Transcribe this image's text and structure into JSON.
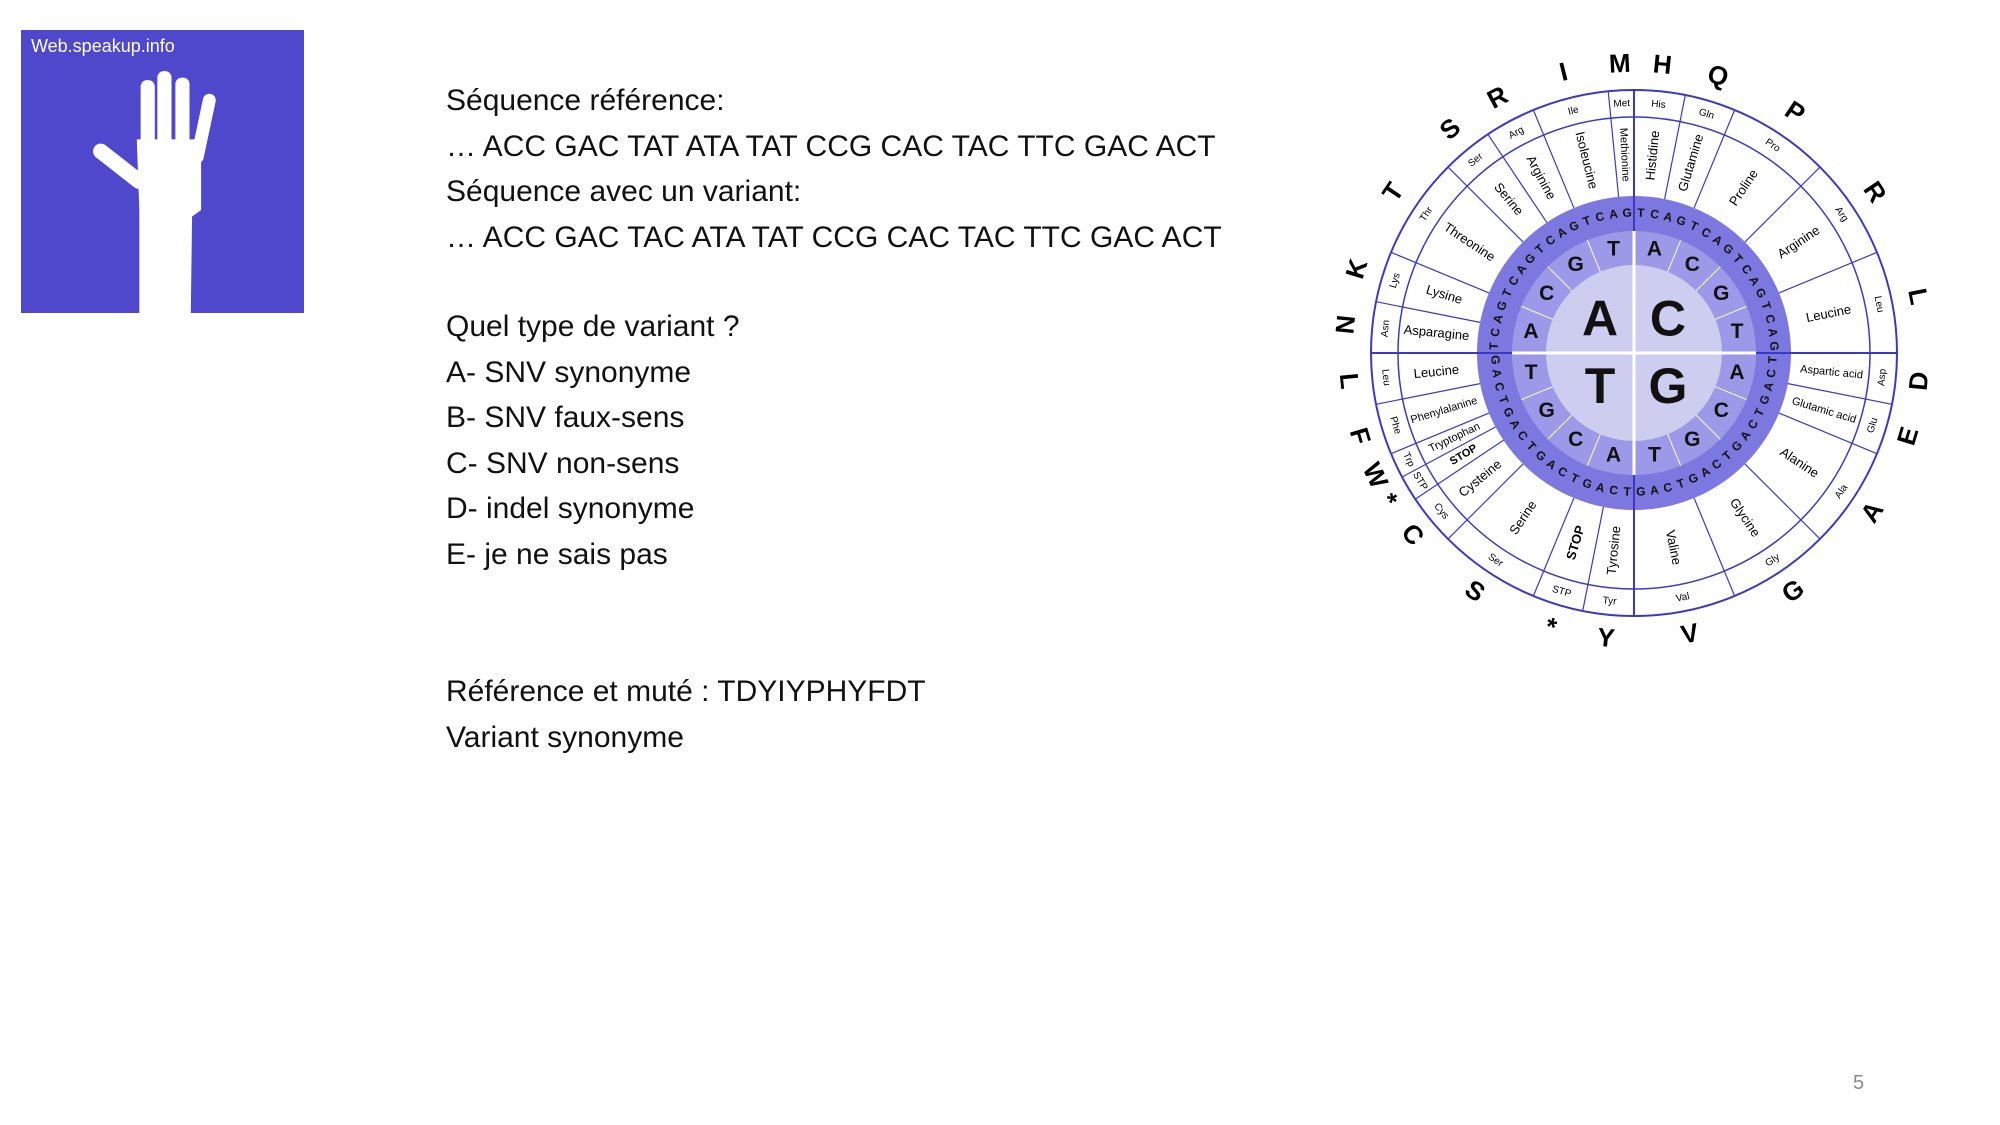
{
  "logo": {
    "text": "Web.speakup.info"
  },
  "slide": {
    "sequence_lines": [
      "Séquence référence:",
      "… ACC GAC TAT ATA TAT CCG CAC TAC TTC GAC ACT",
      "Séquence avec un variant:",
      "… ACC GAC TAC ATA TAT CCG CAC TAC TTC GAC ACT"
    ],
    "question_lines": [
      "Quel type de variant ?",
      "A- SNV synonyme",
      "B- SNV faux-sens",
      "C- SNV non-sens",
      "D- indel synonyme",
      "E- je ne sais pas"
    ],
    "answer_lines": [
      "Référence et muté : TDYIYPHYFDT",
      "Variant synonyme"
    ]
  },
  "wheel": {
    "first": [
      "A",
      "C",
      "G",
      "T"
    ],
    "second": [
      "A",
      "C",
      "G",
      "T"
    ],
    "third": [
      "T",
      "C",
      "A",
      "G"
    ],
    "amino_acids": [
      {
        "name": "Asparagine",
        "abbr": "Asn",
        "letter": "N"
      },
      {
        "name": "Lysine",
        "abbr": "Lys",
        "letter": "K"
      },
      {
        "name": "Threonine",
        "abbr": "Thr",
        "letter": "T"
      },
      {
        "name": "Serine",
        "abbr": "Ser",
        "letter": "S"
      },
      {
        "name": "Arginine",
        "abbr": "Arg",
        "letter": "R"
      },
      {
        "name": "Isoleucine",
        "abbr": "Ile",
        "letter": "I"
      },
      {
        "name": "Methionine",
        "abbr": "Met",
        "letter": "M"
      },
      {
        "name": "Histidine",
        "abbr": "His",
        "letter": "H"
      },
      {
        "name": "Glutamine",
        "abbr": "Gln",
        "letter": "Q"
      },
      {
        "name": "Proline",
        "abbr": "Pro",
        "letter": "P"
      },
      {
        "name": "Arginine",
        "abbr": "Arg",
        "letter": "R"
      },
      {
        "name": "Leucine",
        "abbr": "Leu",
        "letter": "L"
      },
      {
        "name": "Aspartic acid",
        "abbr": "Asp",
        "letter": "D"
      },
      {
        "name": "Glutamic acid",
        "abbr": "Glu",
        "letter": "E"
      },
      {
        "name": "Alanine",
        "abbr": "Ala",
        "letter": "A"
      },
      {
        "name": "Glycine",
        "abbr": "Gly",
        "letter": "G"
      },
      {
        "name": "Valine",
        "abbr": "Val",
        "letter": "V"
      },
      {
        "name": "Tyrosine",
        "abbr": "Tyr",
        "letter": "Y"
      },
      {
        "name": "STOP",
        "abbr": "STP",
        "letter": "*"
      },
      {
        "name": "Serine",
        "abbr": "Ser",
        "letter": "S"
      },
      {
        "name": "Cysteine",
        "abbr": "Cys",
        "letter": "C"
      },
      {
        "name": "STOP",
        "abbr": "STP",
        "letter": "*"
      },
      {
        "name": "Tryptophan",
        "abbr": "Trp",
        "letter": "W"
      },
      {
        "name": "Phenylalanine",
        "abbr": "Phe",
        "letter": "F"
      },
      {
        "name": "Leucine",
        "abbr": "Leu",
        "letter": "L"
      }
    ]
  },
  "page_number": "5"
}
